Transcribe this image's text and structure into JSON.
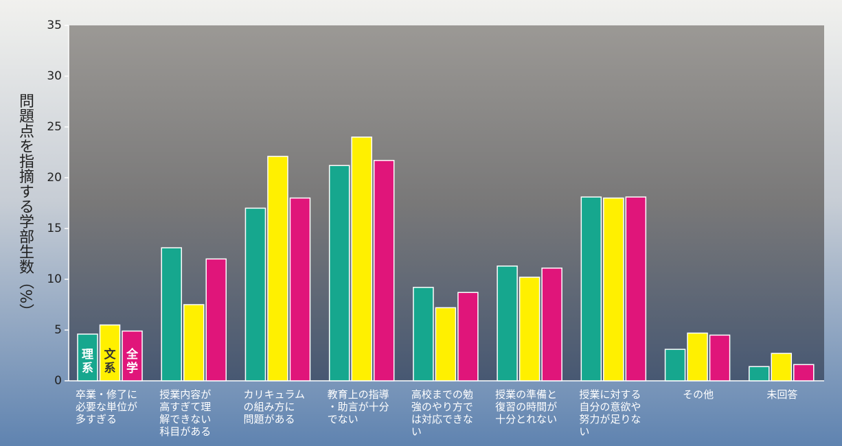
{
  "chart_data": {
    "type": "bar",
    "y_label": "問題点を指摘する学部生数（%）",
    "categories": [
      "卒業・修了に\n必要な単位が\n多すぎる",
      "授業内容が\n高すぎて理\n解できない\n科目がある",
      "カリキュラム\nの組み方に\n問題がある",
      "教育上の指導\n・助言が十分\nでない",
      "高校までの勉\n強のやり方で\nは対応できな\nい",
      "授業の準備と\n復習の時間が\n十分とれない",
      "授業に対する\n自分の意欲や\n努力が足りな\nい",
      "その他",
      "未回答"
    ],
    "series": [
      {
        "name": "理系",
        "color": "#16a78e",
        "values": [
          4.6,
          13.1,
          17.0,
          21.2,
          9.2,
          11.3,
          18.1,
          3.1,
          1.4
        ]
      },
      {
        "name": "文系",
        "color": "#fff000",
        "values": [
          5.5,
          7.5,
          22.1,
          24.0,
          7.2,
          10.2,
          18.0,
          4.7,
          2.7
        ]
      },
      {
        "name": "全学",
        "color": "#e0157a",
        "values": [
          4.9,
          12.0,
          18.0,
          21.7,
          8.7,
          11.1,
          18.1,
          4.5,
          1.6
        ]
      }
    ],
    "ylim": [
      0,
      35
    ],
    "yticks": [
      0,
      5,
      10,
      15,
      20,
      25,
      30,
      35
    ]
  }
}
